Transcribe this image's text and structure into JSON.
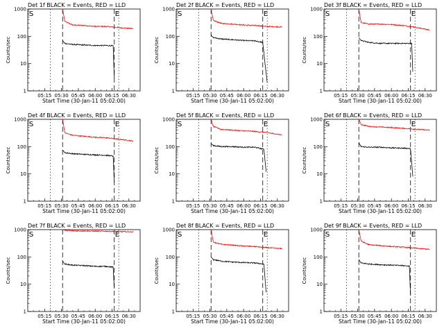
{
  "chart_data": {
    "type": "line",
    "yscale": "log",
    "ylim": [
      1,
      1000
    ],
    "ylabel": "Counts/sec",
    "xlabel": "Start Time (30-Jan-11 05:02:00)",
    "xtick_labels": [
      "05:15",
      "05:30",
      "05:45",
      "06:00",
      "06:15",
      "06:30"
    ],
    "ytick_labels": [
      "1",
      "10",
      "100",
      "1000"
    ],
    "marker_start": "S",
    "marker_end": "E",
    "series_colors": {
      "events": "#000000",
      "lld": "#ff0000"
    },
    "panels": [
      {
        "title": "Det 1f BLACK = Events, RED = LLD",
        "events": {
          "x": [
            "05:31",
            "05:33",
            "05:40",
            "05:50",
            "06:00",
            "06:10",
            "06:16",
            "06:17"
          ],
          "y": [
            70,
            55,
            50,
            48,
            46,
            46,
            45,
            3
          ]
        },
        "lld": {
          "x": [
            "05:31",
            "05:33",
            "05:40",
            "05:50",
            "06:00",
            "06:10",
            "06:20",
            "06:34"
          ],
          "y": [
            1000,
            350,
            260,
            250,
            230,
            230,
            210,
            190
          ]
        }
      },
      {
        "title": "Det 2f BLACK = Events, RED = LLD",
        "events": {
          "x": [
            "05:31",
            "05:33",
            "05:40",
            "05:50",
            "06:00",
            "06:10",
            "06:17",
            "06:19",
            "06:21"
          ],
          "y": [
            110,
            90,
            80,
            75,
            70,
            68,
            60,
            10,
            2
          ]
        },
        "lld": {
          "x": [
            "05:31",
            "05:33",
            "05:40",
            "05:50",
            "06:00",
            "06:10",
            "06:20",
            "06:34"
          ],
          "y": [
            1000,
            380,
            300,
            280,
            260,
            250,
            230,
            220
          ]
        }
      },
      {
        "title": "Det 3f BLACK = Events, RED = LLD",
        "events": {
          "x": [
            "05:31",
            "05:33",
            "05:40",
            "05:50",
            "06:00",
            "06:10",
            "06:18",
            "06:19"
          ],
          "y": [
            90,
            70,
            60,
            55,
            55,
            55,
            55,
            5
          ]
        },
        "lld": {
          "x": [
            "05:31",
            "05:33",
            "05:40",
            "05:50",
            "06:00",
            "06:10",
            "06:20",
            "06:34"
          ],
          "y": [
            1000,
            320,
            280,
            280,
            270,
            250,
            220,
            170
          ]
        }
      },
      {
        "title": "Det 4f BLACK = Events, RED = LLD",
        "events": {
          "x": [
            "05:31",
            "05:33",
            "05:40",
            "05:50",
            "06:00",
            "06:10",
            "06:16",
            "06:17"
          ],
          "y": [
            75,
            60,
            55,
            52,
            50,
            48,
            45,
            5
          ]
        },
        "lld": {
          "x": [
            "05:31",
            "05:33",
            "05:40",
            "05:50",
            "06:00",
            "06:10",
            "06:20",
            "06:34"
          ],
          "y": [
            1000,
            320,
            260,
            240,
            220,
            210,
            190,
            160
          ]
        }
      },
      {
        "title": "Det 5f BLACK = Events, RED = LLD",
        "events": {
          "x": [
            "05:31",
            "05:33",
            "05:40",
            "05:50",
            "06:00",
            "06:10",
            "06:18",
            "06:20"
          ],
          "y": [
            130,
            110,
            100,
            100,
            95,
            95,
            80,
            12
          ]
        },
        "lld": {
          "x": [
            "05:31",
            "05:33",
            "05:40",
            "05:50",
            "06:00",
            "06:10",
            "06:20",
            "06:34"
          ],
          "y": [
            1000,
            550,
            430,
            400,
            380,
            360,
            330,
            270
          ]
        }
      },
      {
        "title": "Det 6f BLACK = Events, RED = LLD",
        "events": {
          "x": [
            "05:31",
            "05:33",
            "05:40",
            "05:50",
            "06:00",
            "06:10",
            "06:17",
            "06:19"
          ],
          "y": [
            140,
            100,
            95,
            95,
            90,
            88,
            85,
            8
          ]
        },
        "lld": {
          "x": [
            "05:31",
            "05:33",
            "05:40",
            "05:50",
            "06:00",
            "06:10",
            "06:20",
            "06:34"
          ],
          "y": [
            1000,
            650,
            550,
            520,
            500,
            470,
            440,
            400
          ]
        }
      },
      {
        "title": "Det 7f BLACK = Events, RED = LLD",
        "events": {
          "x": [
            "05:31",
            "05:33",
            "05:40",
            "05:50",
            "06:00",
            "06:10",
            "06:16",
            "06:17"
          ],
          "y": [
            70,
            55,
            50,
            48,
            45,
            45,
            42,
            7
          ]
        },
        "lld": {
          "x": [
            "05:31",
            "05:33",
            "05:40",
            "05:50",
            "06:00",
            "06:10",
            "06:20",
            "06:34"
          ],
          "y": [
            1000,
            950,
            900,
            900,
            880,
            870,
            850,
            830
          ]
        }
      },
      {
        "title": "Det 8f BLACK = Events, RED = LLD",
        "events": {
          "x": [
            "05:31",
            "05:33",
            "05:40",
            "05:50",
            "06:00",
            "06:10",
            "06:18",
            "06:20"
          ],
          "y": [
            100,
            80,
            70,
            65,
            62,
            60,
            55,
            5
          ]
        },
        "lld": {
          "x": [
            "05:31",
            "05:33",
            "05:40",
            "05:50",
            "06:00",
            "06:10",
            "06:20",
            "06:34"
          ],
          "y": [
            1000,
            350,
            290,
            270,
            250,
            240,
            220,
            200
          ]
        }
      },
      {
        "title": "Det 9f BLACK = Events, RED = LLD",
        "events": {
          "x": [
            "05:31",
            "05:33",
            "05:40",
            "05:50",
            "06:00",
            "06:10",
            "06:16",
            "06:17"
          ],
          "y": [
            80,
            60,
            55,
            52,
            50,
            48,
            46,
            4
          ]
        },
        "lld": {
          "x": [
            "05:31",
            "05:33",
            "05:40",
            "05:50",
            "06:00",
            "06:10",
            "06:20",
            "06:34"
          ],
          "y": [
            1000,
            380,
            280,
            260,
            240,
            230,
            210,
            190
          ]
        }
      }
    ]
  }
}
